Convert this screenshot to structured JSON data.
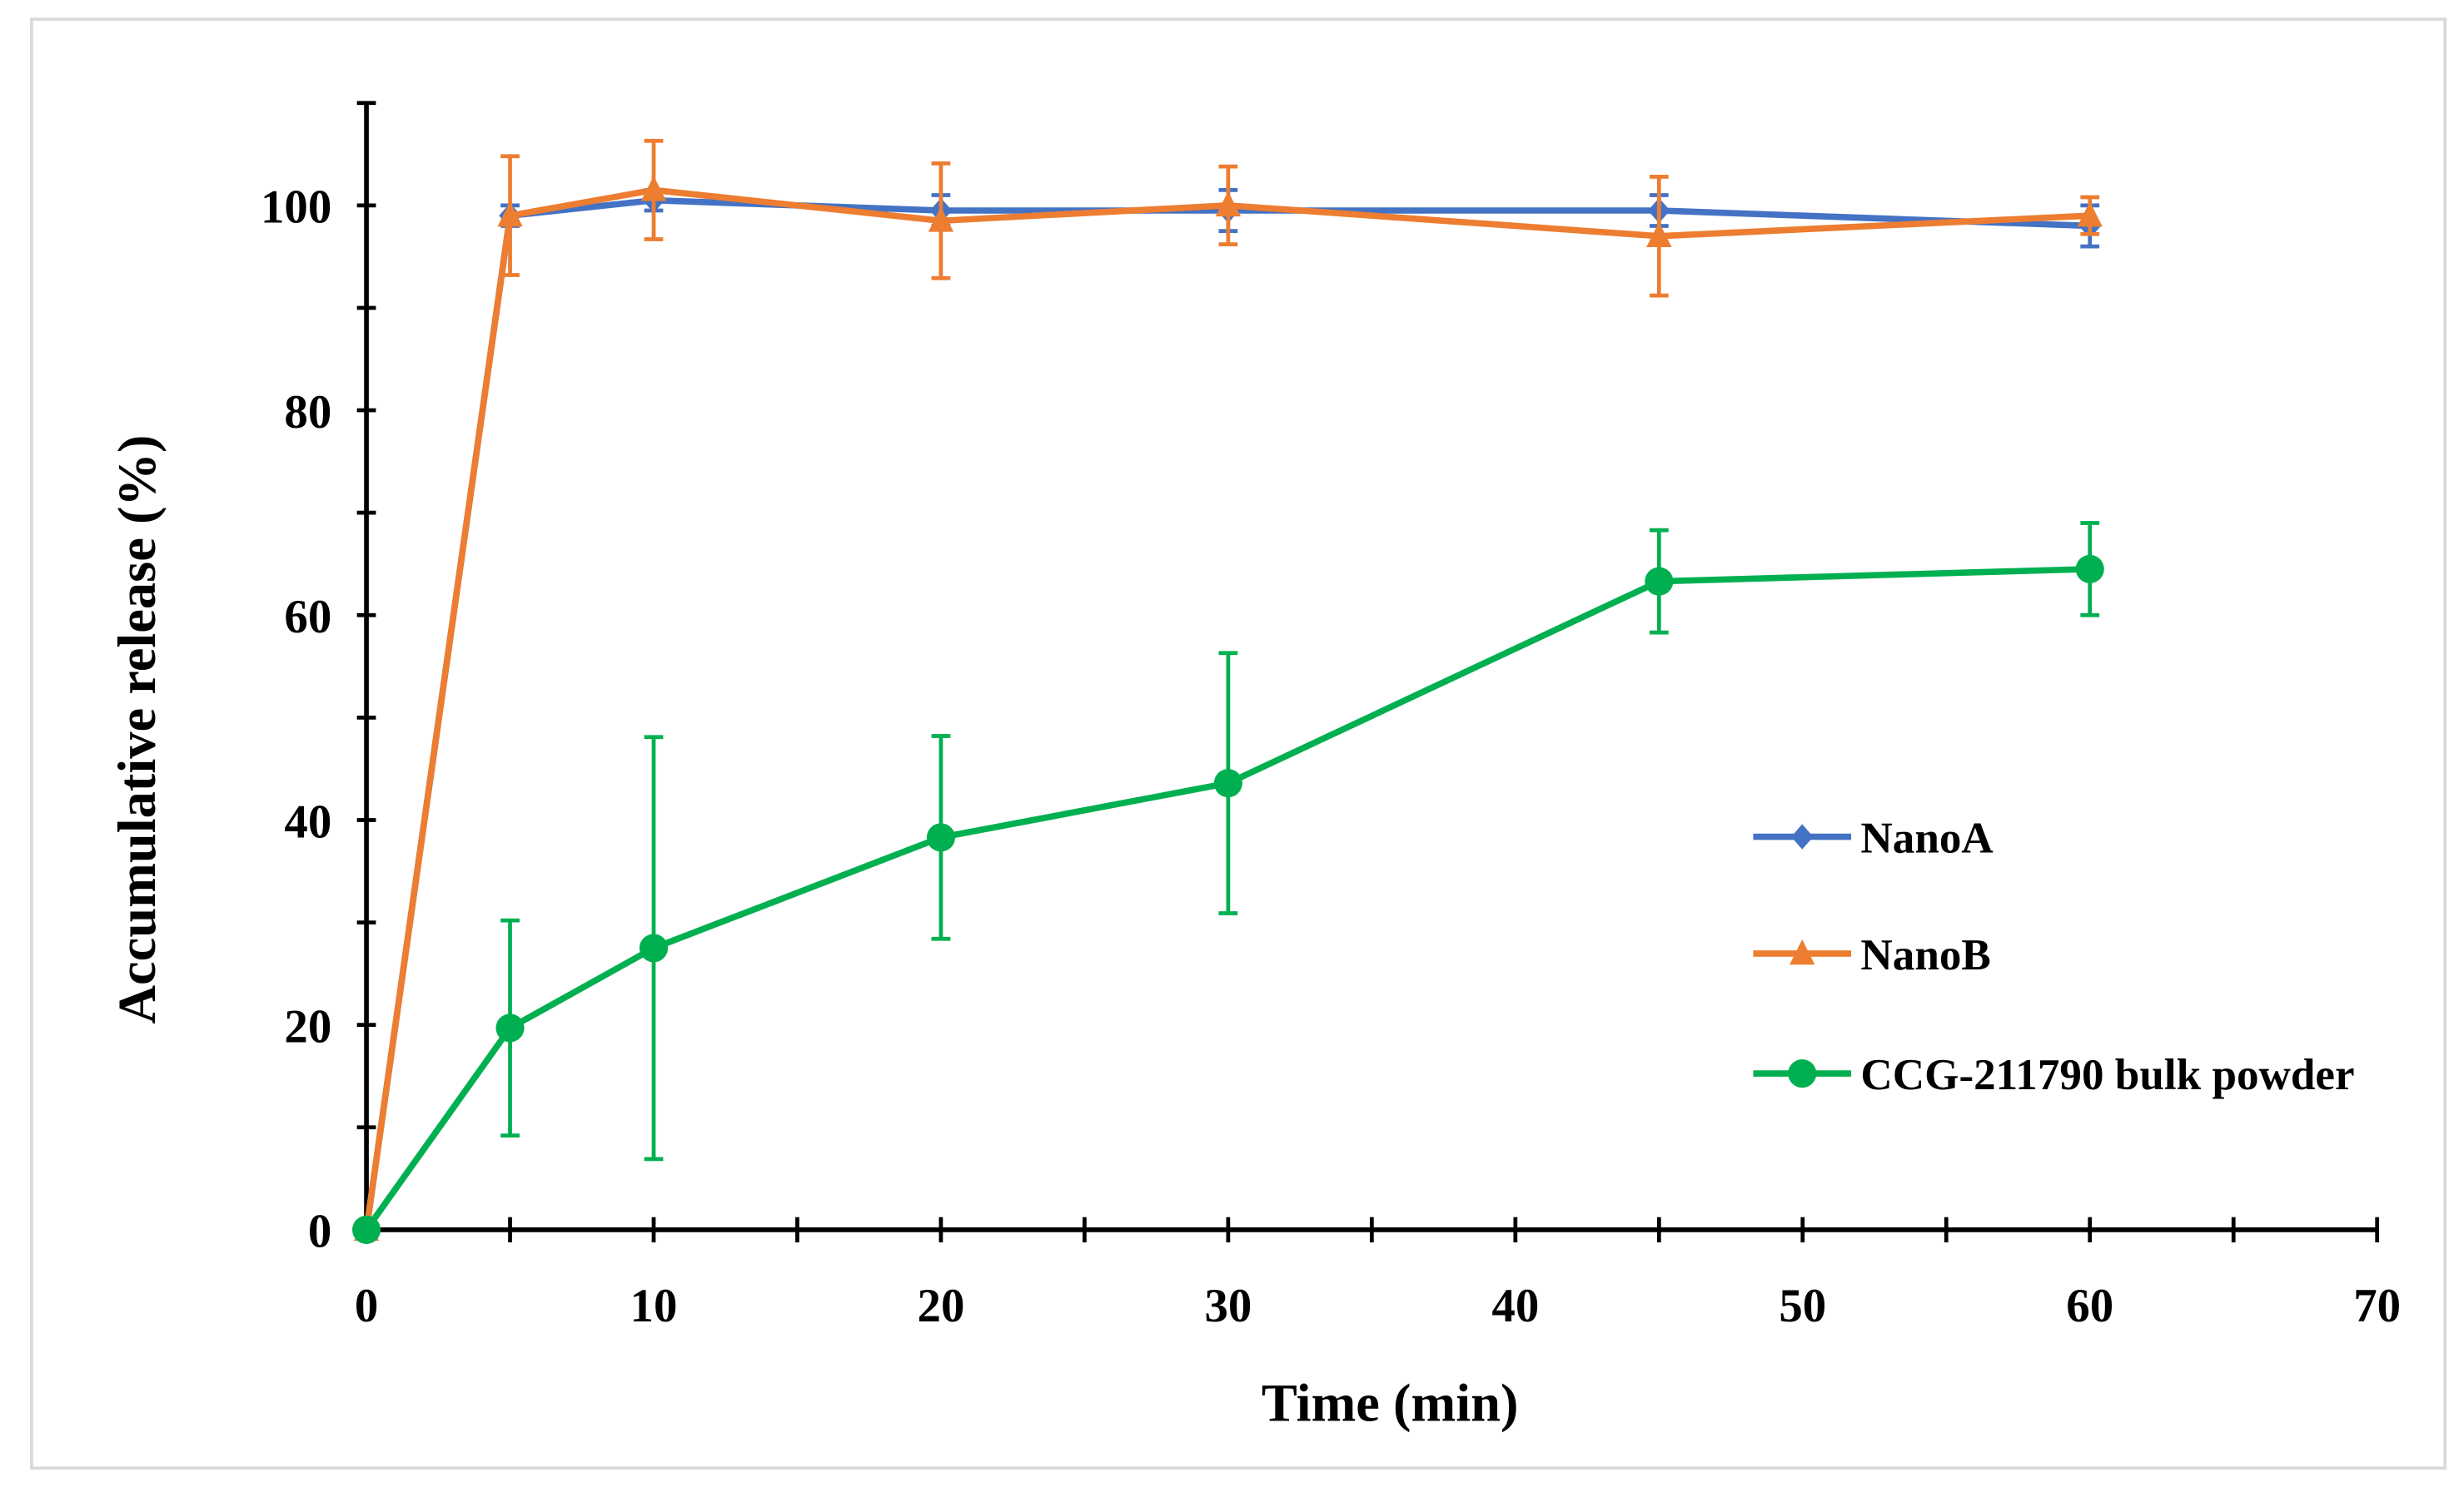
{
  "chart_data": {
    "type": "line",
    "title": "",
    "xlabel": "Time (min)",
    "ylabel": "Accumulative release (%)",
    "xlim": [
      0,
      70
    ],
    "ylim": [
      0,
      110
    ],
    "xticks": [
      0,
      10,
      20,
      30,
      40,
      50,
      60,
      70
    ],
    "yticks": [
      0,
      20,
      40,
      60,
      80,
      100
    ],
    "grid": false,
    "legend_position": "right-center",
    "series": [
      {
        "name": "NanoA",
        "color": "#4472C4",
        "marker": "diamond",
        "x": [
          0,
          5,
          10,
          20,
          30,
          45,
          60
        ],
        "y": [
          0,
          99,
          100.5,
          99.5,
          99.5,
          99.5,
          98
        ],
        "err": [
          0,
          1,
          1,
          1.5,
          2,
          1.5,
          2
        ]
      },
      {
        "name": "NanoB",
        "color": "#ED7D31",
        "marker": "triangle",
        "x": [
          0,
          5,
          10,
          20,
          30,
          45,
          60
        ],
        "y": [
          0,
          99,
          101.5,
          98.5,
          100,
          97,
          99
        ],
        "err": [
          0,
          5.8,
          4.8,
          5.6,
          3.8,
          5.8,
          1.8
        ]
      },
      {
        "name": "CCG-211790 bulk powder",
        "color": "#00B050",
        "marker": "circle",
        "x": [
          0,
          5,
          10,
          20,
          30,
          45,
          60
        ],
        "y": [
          0,
          19.7,
          27.5,
          38.3,
          43.6,
          63.3,
          64.5
        ],
        "err": [
          0,
          10.5,
          20.6,
          9.9,
          12.7,
          5,
          4.5
        ]
      }
    ]
  }
}
